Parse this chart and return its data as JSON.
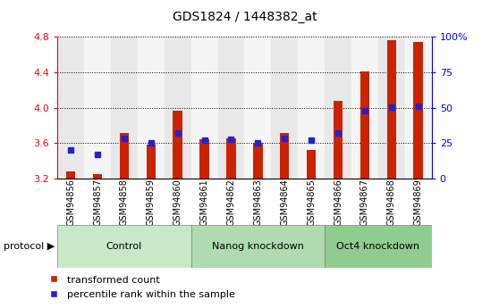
{
  "title": "GDS1824 / 1448382_at",
  "samples": [
    "GSM94856",
    "GSM94857",
    "GSM94858",
    "GSM94859",
    "GSM94860",
    "GSM94861",
    "GSM94862",
    "GSM94863",
    "GSM94864",
    "GSM94865",
    "GSM94866",
    "GSM94867",
    "GSM94868",
    "GSM94869"
  ],
  "red_values": [
    3.28,
    3.25,
    3.72,
    3.58,
    3.97,
    3.64,
    3.65,
    3.6,
    3.72,
    3.52,
    4.08,
    4.41,
    4.76,
    4.74
  ],
  "blue_values": [
    3.52,
    3.47,
    3.65,
    3.6,
    3.72,
    3.63,
    3.64,
    3.6,
    3.65,
    3.63,
    3.72,
    3.97,
    4.01,
    4.02
  ],
  "y_min": 3.2,
  "y_max": 4.8,
  "y_ticks": [
    3.2,
    3.6,
    4.0,
    4.4,
    4.8
  ],
  "right_y_ticks": [
    0,
    25,
    50,
    75,
    100
  ],
  "right_y_tick_labels": [
    "0",
    "25",
    "50",
    "75",
    "100%"
  ],
  "groups": [
    {
      "label": "Control",
      "start": 0,
      "end": 5,
      "color": "#c8e8c8"
    },
    {
      "label": "Nanog knockdown",
      "start": 5,
      "end": 10,
      "color": "#b0dbb0"
    },
    {
      "label": "Oct4 knockdown",
      "start": 10,
      "end": 14,
      "color": "#90cc90"
    }
  ],
  "bar_color": "#cc2200",
  "blue_color": "#2222cc",
  "bar_width": 0.35,
  "bg_color_even": "#e8e8e8",
  "bg_color_odd": "#f5f5f5",
  "legend_items": [
    "transformed count",
    "percentile rank within the sample"
  ],
  "legend_colors": [
    "#cc2200",
    "#2222cc"
  ]
}
